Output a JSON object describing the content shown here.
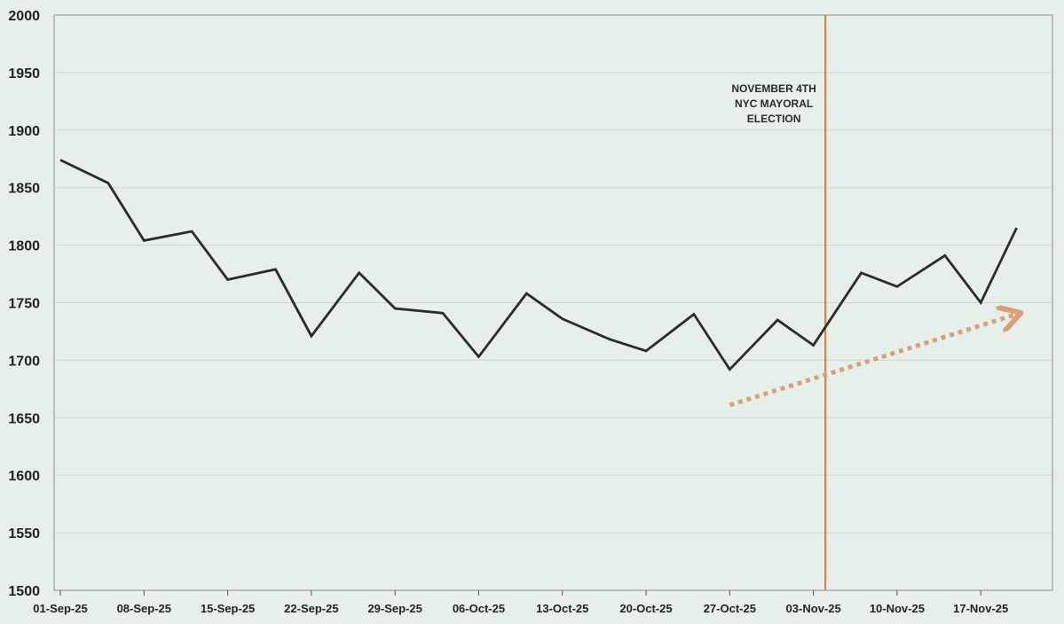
{
  "chart_data": {
    "type": "line",
    "title": "",
    "xlabel": "",
    "ylabel": "",
    "ylim": [
      1500,
      2000
    ],
    "y_ticks": [
      1500,
      1550,
      1600,
      1650,
      1700,
      1750,
      1800,
      1850,
      1900,
      1950,
      2000
    ],
    "x_range": [
      "2025-09-01",
      "2025-11-23"
    ],
    "x_tick_labels": [
      {
        "date": "2025-09-01",
        "label": "01-Sep-25"
      },
      {
        "date": "2025-09-08",
        "label": "08-Sep-25"
      },
      {
        "date": "2025-09-15",
        "label": "15-Sep-25"
      },
      {
        "date": "2025-09-22",
        "label": "22-Sep-25"
      },
      {
        "date": "2025-09-29",
        "label": "29-Sep-25"
      },
      {
        "date": "2025-10-06",
        "label": "06-Oct-25"
      },
      {
        "date": "2025-10-13",
        "label": "13-Oct-25"
      },
      {
        "date": "2025-10-20",
        "label": "20-Oct-25"
      },
      {
        "date": "2025-10-27",
        "label": "27-Oct-25"
      },
      {
        "date": "2025-11-03",
        "label": "03-Nov-25"
      },
      {
        "date": "2025-11-10",
        "label": "10-Nov-25"
      },
      {
        "date": "2025-11-17",
        "label": "17-Nov-25"
      }
    ],
    "grid": "horizontal",
    "series": [
      {
        "color": "#2b2b2b",
        "x": [
          "2025-09-01",
          "2025-09-05",
          "2025-09-08",
          "2025-09-12",
          "2025-09-15",
          "2025-09-19",
          "2025-09-22",
          "2025-09-26",
          "2025-09-29",
          "2025-10-03",
          "2025-10-06",
          "2025-10-10",
          "2025-10-13",
          "2025-10-17",
          "2025-10-20",
          "2025-10-24",
          "2025-10-27",
          "2025-10-31",
          "2025-11-03",
          "2025-11-07",
          "2025-11-10",
          "2025-11-14",
          "2025-11-17",
          "2025-11-20"
        ],
        "y": [
          1874,
          1854,
          1804,
          1812,
          1770,
          1779,
          1721,
          1776,
          1745,
          1741,
          1703,
          1758,
          1736,
          1718,
          1708,
          1740,
          1692,
          1735,
          1713,
          1776,
          1764,
          1791,
          1750,
          1815
        ]
      }
    ],
    "annotations": {
      "event_line": {
        "date": "2025-11-04",
        "color": "#e8782e",
        "lines": [
          "NOVEMBER 4TH",
          "NYC MAYORAL",
          "ELECTION"
        ]
      },
      "trend_arrow": {
        "color": "#d9a07a",
        "start": {
          "x": "2025-10-27",
          "y": 1661
        },
        "end": {
          "x": "2025-11-20",
          "y": 1740
        }
      }
    }
  }
}
